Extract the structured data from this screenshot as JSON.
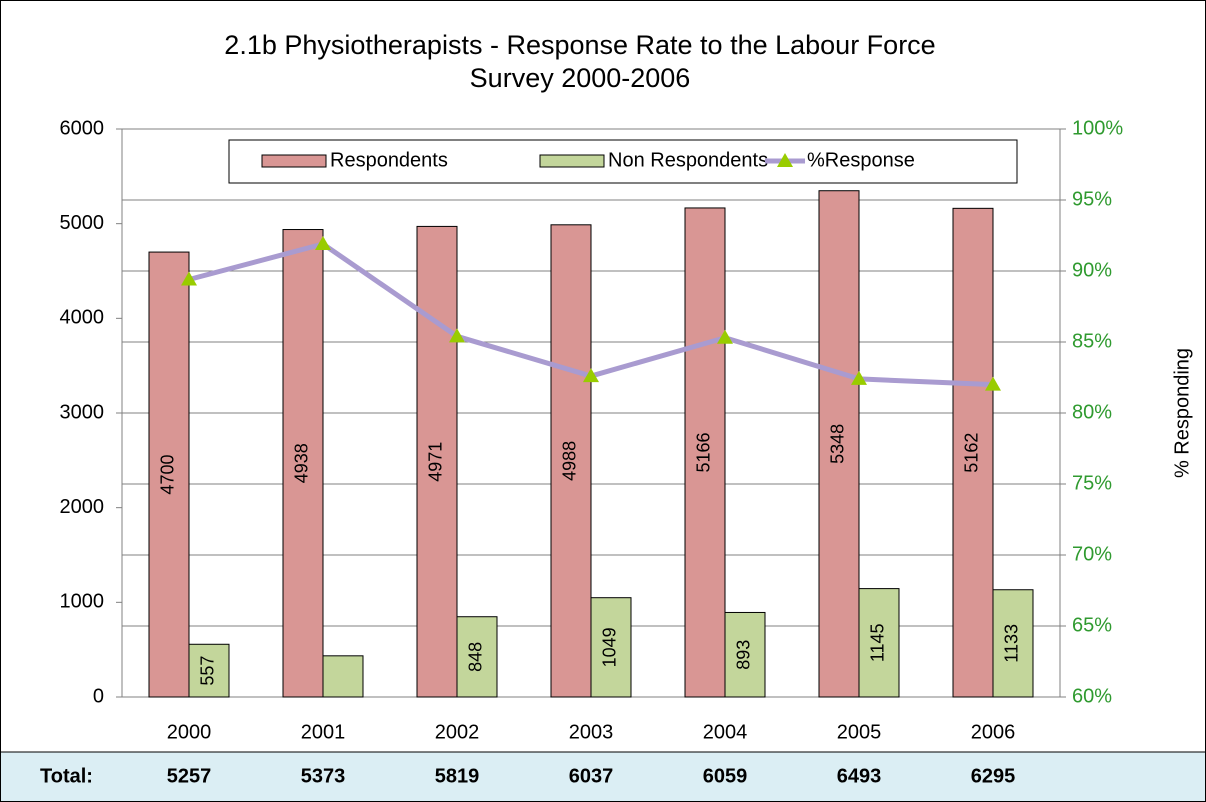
{
  "chart_data": {
    "type": "bar",
    "title": [
      "2.1b Physiotherapists - Response Rate to the Labour Force",
      "Survey  2000-2006"
    ],
    "y2_label": "% Responding",
    "categories": [
      "2000",
      "2001",
      "2002",
      "2003",
      "2004",
      "2005",
      "2006"
    ],
    "series": [
      {
        "name": "Respondents",
        "color": "#d99694",
        "values": [
          4700,
          4938,
          4971,
          4988,
          5166,
          5348,
          5162
        ],
        "value_labels": [
          "4700",
          "4938",
          "4971",
          "4988",
          "5166",
          "5348",
          "5162"
        ]
      },
      {
        "name": "Non Respondents",
        "color": "#c3d69b",
        "values": [
          557,
          435,
          848,
          1049,
          893,
          1145,
          1133
        ],
        "value_labels": [
          "557",
          null,
          "848",
          "1049",
          "893",
          "1145",
          "1133"
        ]
      },
      {
        "name": "%Response",
        "type": "line",
        "axis": "y2",
        "color": "#a99bd0",
        "marker_color": "#99cc00",
        "values": [
          89.4,
          91.9,
          85.4,
          82.6,
          85.3,
          82.4,
          82.0
        ]
      }
    ],
    "ylim": [
      0,
      6000
    ],
    "yticks": [
      0,
      1000,
      2000,
      3000,
      4000,
      5000,
      6000
    ],
    "y2lim": [
      60,
      100
    ],
    "y2ticks": [
      {
        "value": 60,
        "label": "60%"
      },
      {
        "value": 65,
        "label": "65%"
      },
      {
        "value": 70,
        "label": "70%"
      },
      {
        "value": 75,
        "label": "75%"
      },
      {
        "value": 80,
        "label": "80%"
      },
      {
        "value": 85,
        "label": "85%"
      },
      {
        "value": 90,
        "label": "90%"
      },
      {
        "value": 95,
        "label": "95%"
      },
      {
        "value": 100,
        "label": "100%"
      }
    ],
    "grid": true,
    "legend": "top",
    "totals": {
      "label": "Total:",
      "values": [
        5257,
        5373,
        5819,
        6037,
        6059,
        6493,
        6295
      ]
    }
  }
}
